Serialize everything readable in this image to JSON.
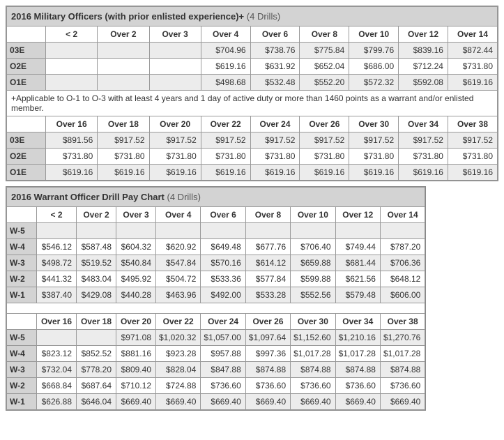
{
  "officers": {
    "title_main": "2016 Military Officers (with prior enlisted experience)+",
    "title_sub": "(4 Drills)",
    "headers_a": [
      "< 2",
      "Over 2",
      "Over 3",
      "Over 4",
      "Over 6",
      "Over 8",
      "Over 10",
      "Over 12",
      "Over 14"
    ],
    "grades_a": [
      "03E",
      "O2E",
      "O1E"
    ],
    "rows_a": [
      [
        "",
        "",
        "",
        "$704.96",
        "$738.76",
        "$775.84",
        "$799.76",
        "$839.16",
        "$872.44"
      ],
      [
        "",
        "",
        "",
        "$619.16",
        "$631.92",
        "$652.04",
        "$686.00",
        "$712.24",
        "$731.80"
      ],
      [
        "",
        "",
        "",
        "$498.68",
        "$532.48",
        "$552.20",
        "$572.32",
        "$592.08",
        "$619.16"
      ]
    ],
    "note": "+Applicable to O-1 to O-3 with at least 4 years and 1 day of active duty or more than 1460 points as a warrant and/or enlisted member.",
    "headers_b": [
      "Over 16",
      "Over 18",
      "Over 20",
      "Over 22",
      "Over 24",
      "Over 26",
      "Over 30",
      "Over 34",
      "Over 38"
    ],
    "grades_b": [
      "03E",
      "O2E",
      "O1E"
    ],
    "rows_b": [
      [
        "$891.56",
        "$917.52",
        "$917.52",
        "$917.52",
        "$917.52",
        "$917.52",
        "$917.52",
        "$917.52",
        "$917.52"
      ],
      [
        "$731.80",
        "$731.80",
        "$731.80",
        "$731.80",
        "$731.80",
        "$731.80",
        "$731.80",
        "$731.80",
        "$731.80"
      ],
      [
        "$619.16",
        "$619.16",
        "$619.16",
        "$619.16",
        "$619.16",
        "$619.16",
        "$619.16",
        "$619.16",
        "$619.16"
      ]
    ]
  },
  "warrant": {
    "title_main": "2016 Warrant Officer Drill Pay Chart",
    "title_sub": "(4 Drills)",
    "headers_a": [
      "< 2",
      "Over 2",
      "Over 3",
      "Over 4",
      "Over 6",
      "Over 8",
      "Over 10",
      "Over 12",
      "Over 14"
    ],
    "grades_a": [
      "W-5",
      "W-4",
      "W-3",
      "W-2",
      "W-1"
    ],
    "rows_a": [
      [
        "",
        "",
        "",
        "",
        "",
        "",
        "",
        "",
        ""
      ],
      [
        "$546.12",
        "$587.48",
        "$604.32",
        "$620.92",
        "$649.48",
        "$677.76",
        "$706.40",
        "$749.44",
        "$787.20"
      ],
      [
        "$498.72",
        "$519.52",
        "$540.84",
        "$547.84",
        "$570.16",
        "$614.12",
        "$659.88",
        "$681.44",
        "$706.36"
      ],
      [
        "$441.32",
        "$483.04",
        "$495.92",
        "$504.72",
        "$533.36",
        "$577.84",
        "$599.88",
        "$621.56",
        "$648.12"
      ],
      [
        "$387.40",
        "$429.08",
        "$440.28",
        "$463.96",
        "$492.00",
        "$533.28",
        "$552.56",
        "$579.48",
        "$606.00"
      ]
    ],
    "headers_b": [
      "Over 16",
      "Over 18",
      "Over 20",
      "Over 22",
      "Over 24",
      "Over 26",
      "Over 30",
      "Over 34",
      "Over 38"
    ],
    "grades_b": [
      "W-5",
      "W-4",
      "W-3",
      "W-2",
      "W-1"
    ],
    "rows_b": [
      [
        "",
        "",
        "$971.08",
        "$1,020.32",
        "$1,057.00",
        "$1,097.64",
        "$1,152.60",
        "$1,210.16",
        "$1,270.76"
      ],
      [
        "$823.12",
        "$852.52",
        "$881.16",
        "$923.28",
        "$957.88",
        "$997.36",
        "$1,017.28",
        "$1,017.28",
        "$1,017.28"
      ],
      [
        "$732.04",
        "$778.20",
        "$809.40",
        "$828.04",
        "$847.88",
        "$874.88",
        "$874.88",
        "$874.88",
        "$874.88"
      ],
      [
        "$668.84",
        "$687.64",
        "$710.12",
        "$724.88",
        "$736.60",
        "$736.60",
        "$736.60",
        "$736.60",
        "$736.60"
      ],
      [
        "$626.88",
        "$646.04",
        "$669.40",
        "$669.40",
        "$669.40",
        "$669.40",
        "$669.40",
        "$669.40",
        "$669.40"
      ]
    ]
  }
}
